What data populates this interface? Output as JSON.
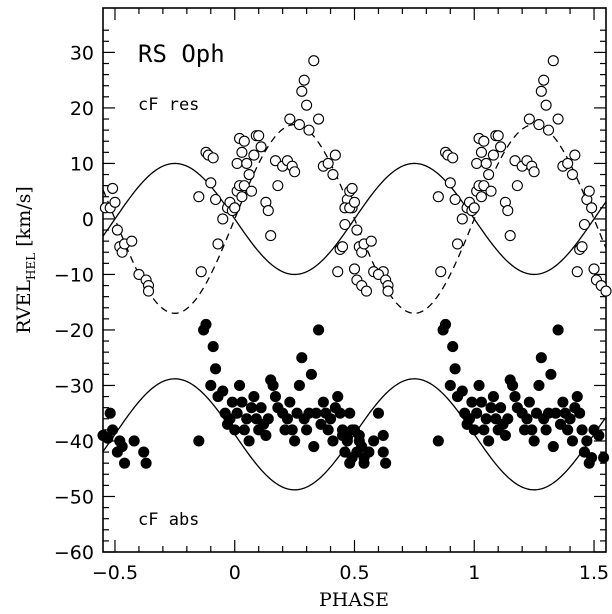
{
  "chart_data": {
    "type": "scatter",
    "title": "RS Oph",
    "xlabel": "PHASE",
    "ylabel_main": "RVEL",
    "ylabel_sub": "HEL",
    "ylabel_unit": "[km/s]",
    "xlim": [
      -0.55,
      1.55
    ],
    "ylim": [
      -60,
      38
    ],
    "x_ticks": [
      -0.5,
      0,
      0.5,
      1,
      1.5
    ],
    "x_tick_labels": [
      "−0.5",
      "0",
      "0.5",
      "1",
      "1.5"
    ],
    "y_ticks": [
      -60,
      -50,
      -40,
      -30,
      -20,
      -10,
      0,
      10,
      20,
      30
    ],
    "y_tick_labels": [
      "−60",
      "−50",
      "−40",
      "−30",
      "−20",
      "−10",
      "0",
      "10",
      "20",
      "30"
    ],
    "grid": false,
    "annotations": {
      "res_label": "cF res",
      "abs_label": "cF abs"
    },
    "curves": {
      "res_solid": {
        "amplitude": 10,
        "offset": 0,
        "phase_of_max": -0.25,
        "style": "solid"
      },
      "res_dashed": {
        "amplitude": 17,
        "offset": 0,
        "phase_of_max": 0.25,
        "style": "dashed"
      },
      "abs_solid": {
        "amplitude": 10,
        "offset": -38.8,
        "phase_of_max": -0.25,
        "style": "solid"
      }
    },
    "series": [
      {
        "marker": "open-circle",
        "x": [
          -0.54,
          -0.52,
          -0.51,
          -0.5,
          -0.49,
          -0.48,
          -0.47,
          -0.46,
          -0.43,
          -0.4,
          -0.37,
          -0.36,
          -0.36,
          -0.15,
          -0.14,
          -0.12,
          -0.11,
          -0.1,
          -0.09,
          -0.08,
          -0.07,
          -0.05,
          -0.03,
          -0.02,
          -0.01,
          0.0,
          0.01,
          0.01,
          0.02,
          0.02,
          0.03,
          0.03,
          0.04,
          0.04,
          0.05,
          0.06,
          0.07,
          0.08,
          0.09,
          0.1,
          0.11,
          0.13,
          0.14,
          0.15,
          0.17,
          0.18,
          0.2,
          0.22,
          0.23,
          0.24,
          0.25,
          0.27,
          0.28,
          0.29,
          0.3,
          0.31,
          0.33,
          0.35,
          0.37,
          0.39,
          0.41,
          0.42,
          0.43,
          0.44,
          0.45,
          0.46,
          0.47,
          0.48,
          0.49,
          0.5,
          0.51,
          0.53,
          0.55,
          0.58,
          0.62
        ],
        "y": [
          2,
          2,
          5.5,
          3,
          -2,
          -5,
          -6,
          -4.5,
          -4,
          -10,
          -11,
          -12,
          -13,
          4,
          -9.5,
          12,
          11.5,
          6.5,
          11,
          3.5,
          -4.5,
          0,
          2,
          3,
          1.5,
          2,
          10,
          5,
          14.5,
          6,
          4,
          12,
          14,
          6,
          10,
          8,
          5,
          11.5,
          15,
          15,
          13,
          3,
          1.5,
          -3,
          10.5,
          6,
          9.5,
          10.5,
          18,
          9.5,
          8.5,
          17,
          23,
          25,
          20.5,
          16,
          28.5,
          18,
          9.5,
          10,
          8,
          11.5,
          -9.5,
          -5.5,
          -5,
          -1,
          3.5,
          5,
          2,
          -9,
          -11,
          -12,
          -13,
          -9.5,
          -9.5
        ]
      },
      {
        "marker": "filled-circle",
        "x": [
          -0.55,
          -0.53,
          -0.52,
          -0.51,
          -0.49,
          -0.48,
          -0.47,
          -0.46,
          -0.42,
          -0.38,
          -0.37,
          -0.15,
          -0.13,
          -0.12,
          -0.1,
          -0.09,
          -0.08,
          -0.07,
          -0.05,
          -0.04,
          -0.03,
          -0.02,
          -0.01,
          0.0,
          0.01,
          0.02,
          0.03,
          0.04,
          0.05,
          0.06,
          0.07,
          0.08,
          0.09,
          0.1,
          0.11,
          0.12,
          0.13,
          0.14,
          0.15,
          0.16,
          0.17,
          0.18,
          0.2,
          0.21,
          0.22,
          0.23,
          0.24,
          0.25,
          0.26,
          0.27,
          0.28,
          0.29,
          0.3,
          0.31,
          0.32,
          0.33,
          0.34,
          0.35,
          0.36,
          0.37,
          0.38,
          0.39,
          0.4,
          0.41,
          0.42,
          0.43,
          0.44,
          0.45,
          0.46,
          0.47,
          0.48,
          0.49,
          0.5,
          0.52,
          0.54,
          0.56,
          0.6,
          0.62
        ],
        "y": [
          -39,
          -39.5,
          -35,
          -38,
          -42,
          -40,
          -41,
          -44,
          -40,
          -42,
          -44,
          -40,
          -20,
          -19,
          -30,
          -23,
          -27,
          -32,
          -31,
          -35,
          -37,
          -36,
          -33,
          -38,
          -35,
          -30,
          -33,
          -38,
          -36,
          -40,
          -34,
          -32,
          -36,
          -38,
          -34,
          -37,
          -39,
          -36,
          -29,
          -30,
          -32,
          -34,
          -35,
          -38,
          -36,
          -33,
          -38,
          -40,
          -35,
          -30,
          -25,
          -36,
          -38,
          -35,
          -28,
          -41,
          -35,
          -20,
          -37,
          -33,
          -35,
          -38,
          -36,
          -40,
          -34,
          -32,
          -35,
          -38,
          -42,
          -40,
          -44,
          -43,
          -38,
          -39,
          -43,
          -42,
          -35,
          -39
        ]
      }
    ]
  }
}
